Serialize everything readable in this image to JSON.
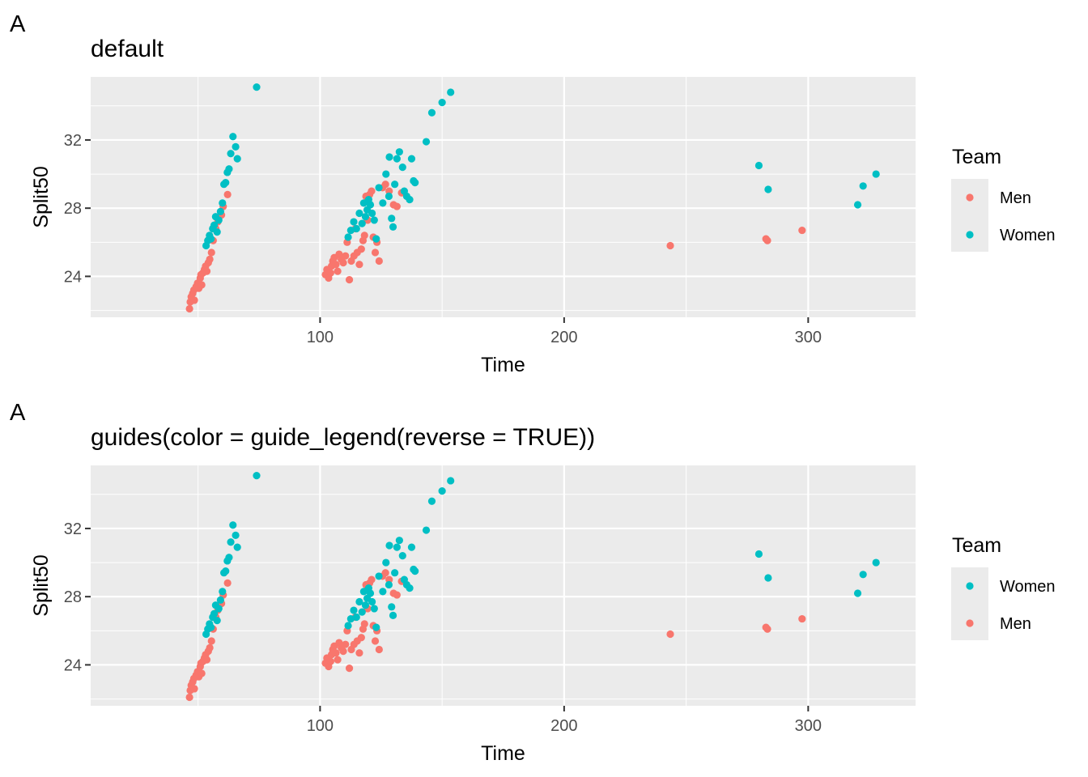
{
  "panels": [
    {
      "tag": "A",
      "title": "default"
    },
    {
      "tag": "A",
      "title": "guides(color = guide_legend(reverse = TRUE))"
    }
  ],
  "colors": {
    "Men": "#F8766D",
    "Women": "#00BFC4",
    "panel_bg": "#EBEBEB",
    "grid": "#FFFFFF"
  },
  "chart_data": [
    {
      "type": "scatter",
      "title": "default",
      "xlabel": "Time",
      "ylabel": "Split50",
      "xlim": [
        6,
        344
      ],
      "ylim": [
        21.6,
        35.7
      ],
      "x_ticks": [
        100,
        200,
        300
      ],
      "y_ticks": [
        24,
        28,
        32
      ],
      "grid": true,
      "legend": {
        "title": "Team",
        "position": "right",
        "entries": [
          "Men",
          "Women"
        ]
      },
      "series": [
        {
          "name": "Men",
          "color": "#F8766D",
          "points": [
            [
              46.5,
              22.1
            ],
            [
              46.8,
              22.5
            ],
            [
              47.2,
              22.8
            ],
            [
              47.8,
              23.0
            ],
            [
              48.3,
              23.2
            ],
            [
              48.5,
              22.6
            ],
            [
              49.2,
              23.4
            ],
            [
              49.8,
              23.6
            ],
            [
              50.3,
              23.3
            ],
            [
              50.9,
              23.9
            ],
            [
              51.2,
              24.1
            ],
            [
              51.5,
              23.5
            ],
            [
              52.0,
              24.2
            ],
            [
              52.6,
              24.4
            ],
            [
              53.1,
              24.6
            ],
            [
              53.6,
              24.3
            ],
            [
              54.2,
              24.8
            ],
            [
              54.8,
              25.0
            ],
            [
              55.5,
              25.4
            ],
            [
              56.2,
              26.1
            ],
            [
              57.3,
              26.8
            ],
            [
              58.1,
              27.2
            ],
            [
              59.6,
              27.6
            ],
            [
              60.3,
              28.1
            ],
            [
              62.1,
              28.8
            ],
            [
              102.2,
              24.1
            ],
            [
              102.8,
              24.4
            ],
            [
              103.5,
              23.9
            ],
            [
              104.3,
              24.2
            ],
            [
              104.7,
              24.6
            ],
            [
              105.2,
              24.9
            ],
            [
              105.8,
              25.1
            ],
            [
              106.5,
              24.7
            ],
            [
              107.2,
              24.3
            ],
            [
              107.8,
              25.3
            ],
            [
              108.7,
              25.0
            ],
            [
              109.5,
              24.8
            ],
            [
              110.4,
              25.2
            ],
            [
              111.1,
              26.0
            ],
            [
              112.0,
              23.8
            ],
            [
              112.8,
              24.9
            ],
            [
              113.9,
              25.2
            ],
            [
              114.5,
              26.8
            ],
            [
              115.2,
              25.4
            ],
            [
              116.1,
              24.7
            ],
            [
              116.9,
              25.6
            ],
            [
              117.6,
              26.1
            ],
            [
              118.2,
              26.4
            ],
            [
              118.8,
              28.7
            ],
            [
              119.5,
              27.3
            ],
            [
              120.3,
              28.8
            ],
            [
              121.1,
              29.0
            ],
            [
              121.8,
              26.3
            ],
            [
              122.6,
              25.4
            ],
            [
              123.3,
              26.0
            ],
            [
              124.2,
              24.9
            ],
            [
              125.6,
              29.2
            ],
            [
              126.8,
              29.4
            ],
            [
              128.3,
              29.0
            ],
            [
              130.1,
              28.2
            ],
            [
              131.5,
              28.1
            ],
            [
              133.4,
              28.9
            ],
            [
              243.5,
              25.8
            ],
            [
              282.7,
              26.2
            ],
            [
              283.3,
              26.1
            ],
            [
              297.5,
              26.7
            ]
          ]
        },
        {
          "name": "Women",
          "color": "#00BFC4",
          "points": [
            [
              53.3,
              25.8
            ],
            [
              54.0,
              26.1
            ],
            [
              54.7,
              26.4
            ],
            [
              55.3,
              26.2
            ],
            [
              56.0,
              26.8
            ],
            [
              56.6,
              27.0
            ],
            [
              57.2,
              27.5
            ],
            [
              57.8,
              26.6
            ],
            [
              58.5,
              27.3
            ],
            [
              59.2,
              27.8
            ],
            [
              60.0,
              28.3
            ],
            [
              60.6,
              29.4
            ],
            [
              61.3,
              29.5
            ],
            [
              62.0,
              30.1
            ],
            [
              62.7,
              30.3
            ],
            [
              63.4,
              31.2
            ],
            [
              64.3,
              32.2
            ],
            [
              65.4,
              31.6
            ],
            [
              66.1,
              30.9
            ],
            [
              74.0,
              35.1
            ],
            [
              111.5,
              26.3
            ],
            [
              112.6,
              26.7
            ],
            [
              113.8,
              27.2
            ],
            [
              114.9,
              26.8
            ],
            [
              116.1,
              27.7
            ],
            [
              117.2,
              27.1
            ],
            [
              117.9,
              28.3
            ],
            [
              118.6,
              27.5
            ],
            [
              119.3,
              27.9
            ],
            [
              119.9,
              28.5
            ],
            [
              120.6,
              28.2
            ],
            [
              121.3,
              27.7
            ],
            [
              122.2,
              27.3
            ],
            [
              123.0,
              26.2
            ],
            [
              124.1,
              29.2
            ],
            [
              125.7,
              28.3
            ],
            [
              127.0,
              30.0
            ],
            [
              128.2,
              28.7
            ],
            [
              129.3,
              27.4
            ],
            [
              129.9,
              26.9
            ],
            [
              128.4,
              31.0
            ],
            [
              130.6,
              29.4
            ],
            [
              131.5,
              30.9
            ],
            [
              132.5,
              31.3
            ],
            [
              133.8,
              30.4
            ],
            [
              134.5,
              29.0
            ],
            [
              135.5,
              28.7
            ],
            [
              136.7,
              28.5
            ],
            [
              137.5,
              30.9
            ],
            [
              138.3,
              29.6
            ],
            [
              138.9,
              29.5
            ],
            [
              143.5,
              31.9
            ],
            [
              145.8,
              33.6
            ],
            [
              150.0,
              34.2
            ],
            [
              153.5,
              34.8
            ],
            [
              279.8,
              30.5
            ],
            [
              283.6,
              29.1
            ],
            [
              320.3,
              28.2
            ],
            [
              322.5,
              29.3
            ],
            [
              327.8,
              30.0
            ]
          ]
        }
      ]
    },
    {
      "type": "scatter",
      "title": "guides(color = guide_legend(reverse = TRUE))",
      "xlabel": "Time",
      "ylabel": "Split50",
      "xlim": [
        6,
        344
      ],
      "ylim": [
        21.6,
        35.7
      ],
      "x_ticks": [
        100,
        200,
        300
      ],
      "y_ticks": [
        24,
        28,
        32
      ],
      "grid": true,
      "legend": {
        "title": "Team",
        "position": "right",
        "entries": [
          "Women",
          "Men"
        ]
      },
      "series": [
        {
          "name": "Men",
          "color": "#F8766D",
          "points": [
            [
              46.5,
              22.1
            ],
            [
              46.8,
              22.5
            ],
            [
              47.2,
              22.8
            ],
            [
              47.8,
              23.0
            ],
            [
              48.3,
              23.2
            ],
            [
              48.5,
              22.6
            ],
            [
              49.2,
              23.4
            ],
            [
              49.8,
              23.6
            ],
            [
              50.3,
              23.3
            ],
            [
              50.9,
              23.9
            ],
            [
              51.2,
              24.1
            ],
            [
              51.5,
              23.5
            ],
            [
              52.0,
              24.2
            ],
            [
              52.6,
              24.4
            ],
            [
              53.1,
              24.6
            ],
            [
              53.6,
              24.3
            ],
            [
              54.2,
              24.8
            ],
            [
              54.8,
              25.0
            ],
            [
              55.5,
              25.4
            ],
            [
              56.2,
              26.1
            ],
            [
              57.3,
              26.8
            ],
            [
              58.1,
              27.2
            ],
            [
              59.6,
              27.6
            ],
            [
              60.3,
              28.1
            ],
            [
              62.1,
              28.8
            ],
            [
              102.2,
              24.1
            ],
            [
              102.8,
              24.4
            ],
            [
              103.5,
              23.9
            ],
            [
              104.3,
              24.2
            ],
            [
              104.7,
              24.6
            ],
            [
              105.2,
              24.9
            ],
            [
              105.8,
              25.1
            ],
            [
              106.5,
              24.7
            ],
            [
              107.2,
              24.3
            ],
            [
              107.8,
              25.3
            ],
            [
              108.7,
              25.0
            ],
            [
              109.5,
              24.8
            ],
            [
              110.4,
              25.2
            ],
            [
              111.1,
              26.0
            ],
            [
              112.0,
              23.8
            ],
            [
              112.8,
              24.9
            ],
            [
              113.9,
              25.2
            ],
            [
              114.5,
              26.8
            ],
            [
              115.2,
              25.4
            ],
            [
              116.1,
              24.7
            ],
            [
              116.9,
              25.6
            ],
            [
              117.6,
              26.1
            ],
            [
              118.2,
              26.4
            ],
            [
              118.8,
              28.7
            ],
            [
              119.5,
              27.3
            ],
            [
              120.3,
              28.8
            ],
            [
              121.1,
              29.0
            ],
            [
              121.8,
              26.3
            ],
            [
              122.6,
              25.4
            ],
            [
              123.3,
              26.0
            ],
            [
              124.2,
              24.9
            ],
            [
              125.6,
              29.2
            ],
            [
              126.8,
              29.4
            ],
            [
              128.3,
              29.0
            ],
            [
              130.1,
              28.2
            ],
            [
              131.5,
              28.1
            ],
            [
              133.4,
              28.9
            ],
            [
              243.5,
              25.8
            ],
            [
              282.7,
              26.2
            ],
            [
              283.3,
              26.1
            ],
            [
              297.5,
              26.7
            ]
          ]
        },
        {
          "name": "Women",
          "color": "#00BFC4",
          "points": [
            [
              53.3,
              25.8
            ],
            [
              54.0,
              26.1
            ],
            [
              54.7,
              26.4
            ],
            [
              55.3,
              26.2
            ],
            [
              56.0,
              26.8
            ],
            [
              56.6,
              27.0
            ],
            [
              57.2,
              27.5
            ],
            [
              57.8,
              26.6
            ],
            [
              58.5,
              27.3
            ],
            [
              59.2,
              27.8
            ],
            [
              60.0,
              28.3
            ],
            [
              60.6,
              29.4
            ],
            [
              61.3,
              29.5
            ],
            [
              62.0,
              30.1
            ],
            [
              62.7,
              30.3
            ],
            [
              63.4,
              31.2
            ],
            [
              64.3,
              32.2
            ],
            [
              65.4,
              31.6
            ],
            [
              66.1,
              30.9
            ],
            [
              74.0,
              35.1
            ],
            [
              111.5,
              26.3
            ],
            [
              112.6,
              26.7
            ],
            [
              113.8,
              27.2
            ],
            [
              114.9,
              26.8
            ],
            [
              116.1,
              27.7
            ],
            [
              117.2,
              27.1
            ],
            [
              117.9,
              28.3
            ],
            [
              118.6,
              27.5
            ],
            [
              119.3,
              27.9
            ],
            [
              119.9,
              28.5
            ],
            [
              120.6,
              28.2
            ],
            [
              121.3,
              27.7
            ],
            [
              122.2,
              27.3
            ],
            [
              123.0,
              26.2
            ],
            [
              124.1,
              29.2
            ],
            [
              125.7,
              28.3
            ],
            [
              127.0,
              30.0
            ],
            [
              128.2,
              28.7
            ],
            [
              129.3,
              27.4
            ],
            [
              129.9,
              26.9
            ],
            [
              128.4,
              31.0
            ],
            [
              130.6,
              29.4
            ],
            [
              131.5,
              30.9
            ],
            [
              132.5,
              31.3
            ],
            [
              133.8,
              30.4
            ],
            [
              134.5,
              29.0
            ],
            [
              135.5,
              28.7
            ],
            [
              136.7,
              28.5
            ],
            [
              137.5,
              30.9
            ],
            [
              138.3,
              29.6
            ],
            [
              138.9,
              29.5
            ],
            [
              143.5,
              31.9
            ],
            [
              145.8,
              33.6
            ],
            [
              150.0,
              34.2
            ],
            [
              153.5,
              34.8
            ],
            [
              279.8,
              30.5
            ],
            [
              283.6,
              29.1
            ],
            [
              320.3,
              28.2
            ],
            [
              322.5,
              29.3
            ],
            [
              327.8,
              30.0
            ]
          ]
        }
      ]
    }
  ]
}
